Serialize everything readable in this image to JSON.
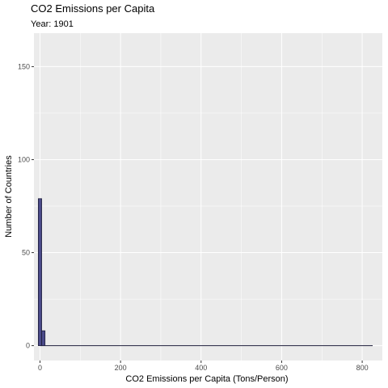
{
  "chart_data": {
    "type": "bar",
    "title": "CO2 Emissions per Capita",
    "subtitle": "Year: 1901",
    "xlabel": "CO2 Emissions per Capita (Tons/Person)",
    "ylabel": "Number of Countries",
    "xlim": [
      -15,
      850
    ],
    "ylim": [
      -8,
      168
    ],
    "xticks": [
      0,
      200,
      400,
      600,
      800
    ],
    "yticks": [
      0,
      50,
      100,
      150
    ],
    "bin_width": 8.3,
    "bins": [
      {
        "x": 0,
        "count": 79
      },
      {
        "x": 8.3,
        "count": 8
      }
    ],
    "x_max": 826,
    "grid": true,
    "colors": {
      "panel": "#ebebeb",
      "grid": "#ffffff",
      "bar_fill": "#4b4b8a",
      "bar_stroke": "#1c1c3a"
    }
  }
}
